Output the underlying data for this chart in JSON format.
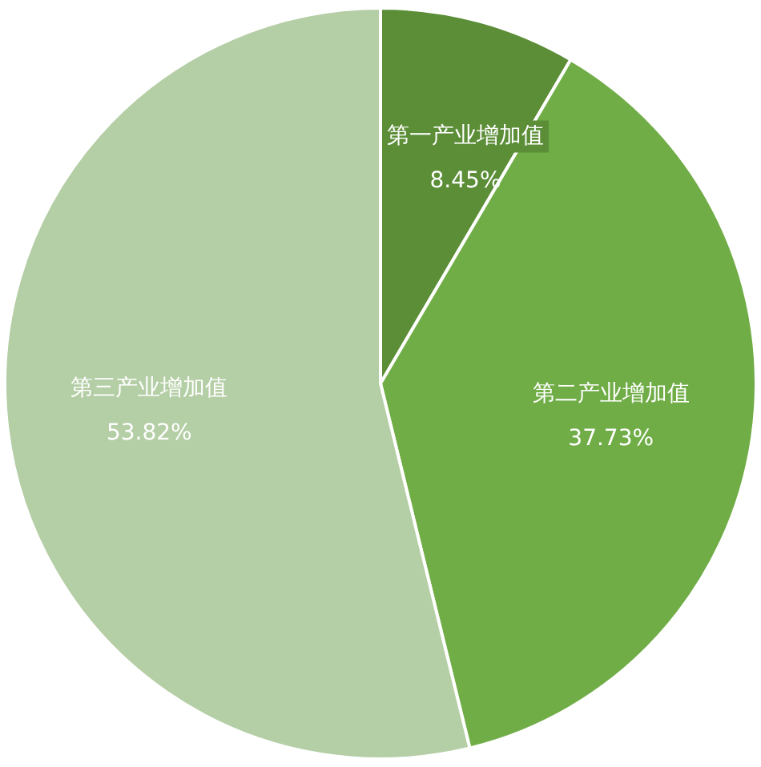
{
  "chart_data": {
    "type": "pie",
    "categories": [
      "第一产业增加值",
      "第二产业增加值",
      "第三产业增加值"
    ],
    "values": [
      8.45,
      37.73,
      53.82
    ],
    "value_labels": [
      "8.45%",
      "37.73%",
      "53.82%"
    ],
    "colors": [
      "#5b8e37",
      "#70ad47",
      "#b4cea5"
    ],
    "legend": false
  }
}
